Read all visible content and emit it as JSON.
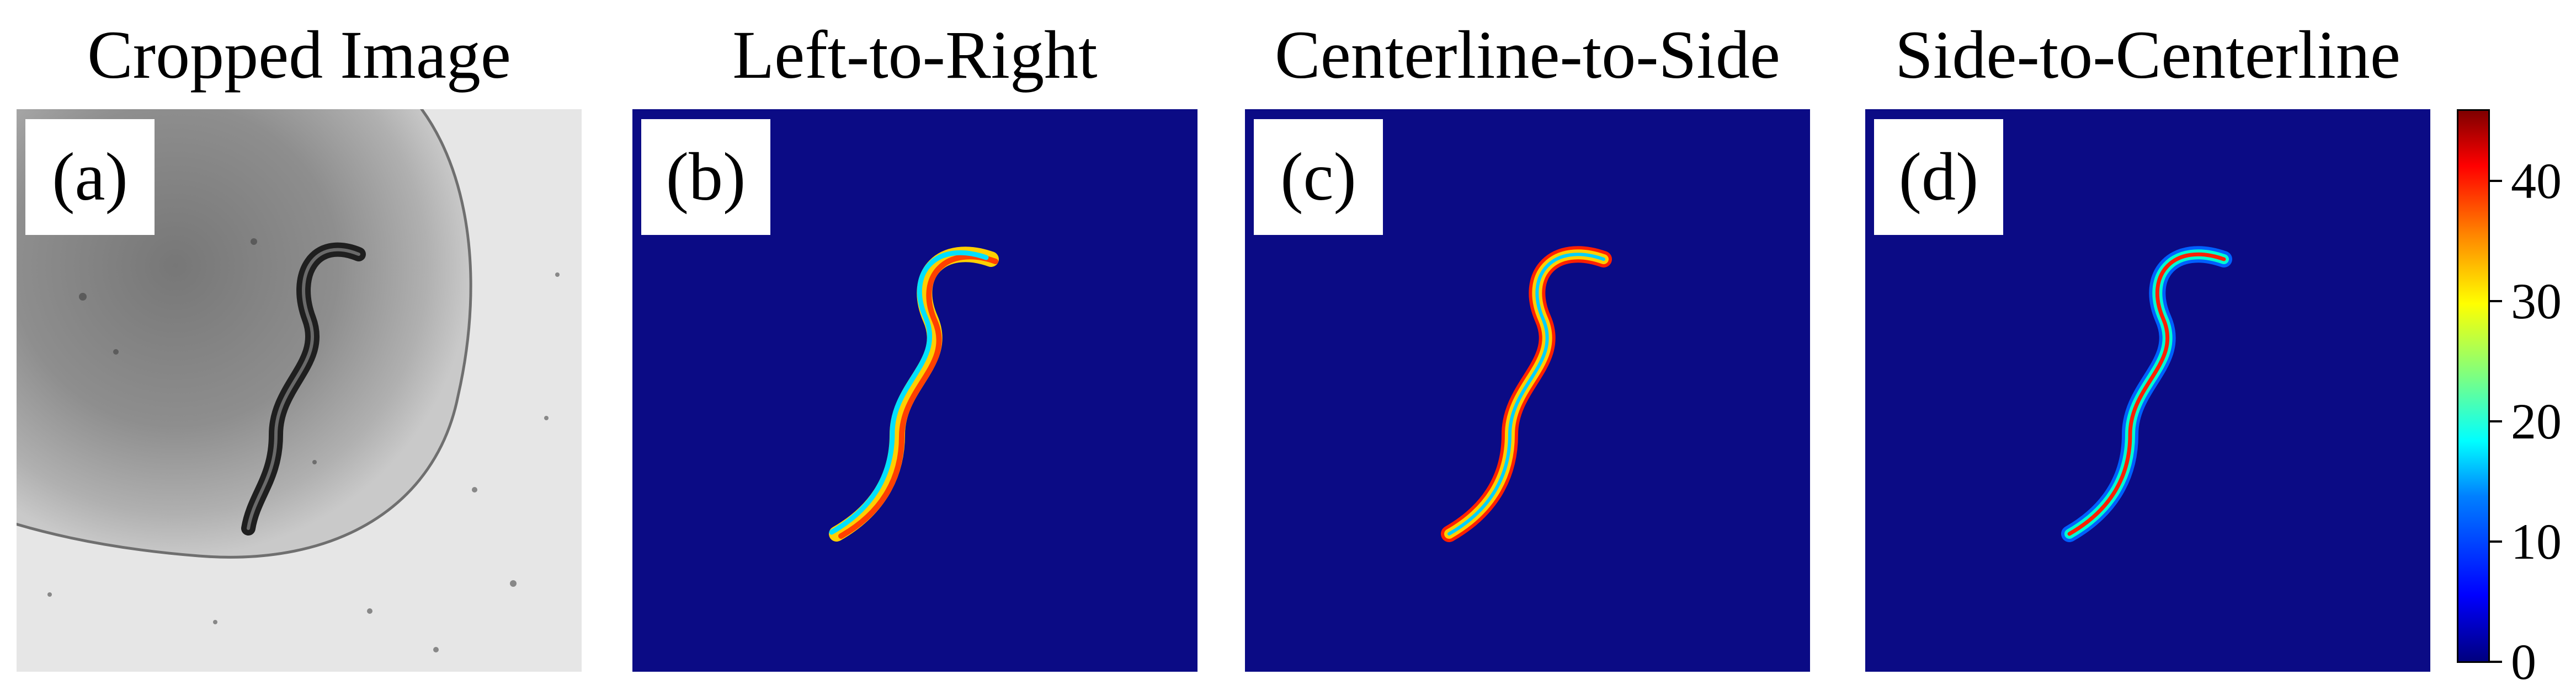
{
  "panels": [
    {
      "id": "a",
      "title": "Cropped Image",
      "label": "(a)"
    },
    {
      "id": "b",
      "title": "Left-to-Right",
      "label": "(b)"
    },
    {
      "id": "c",
      "title": "Centerline-to-Side",
      "label": "(c)"
    },
    {
      "id": "d",
      "title": "Side-to-Centerline",
      "label": "(d)"
    }
  ],
  "colorbar": {
    "ticks": [
      "0",
      "10",
      "20",
      "30",
      "40"
    ],
    "colors": [
      "#00007f",
      "#0000ff",
      "#00ffff",
      "#ffff00",
      "#ff0000",
      "#7f0000"
    ]
  },
  "colors": {
    "background_blue": "#0b0b85",
    "plate_gray": "#8c8c8c",
    "worm_dark": "#262626"
  }
}
